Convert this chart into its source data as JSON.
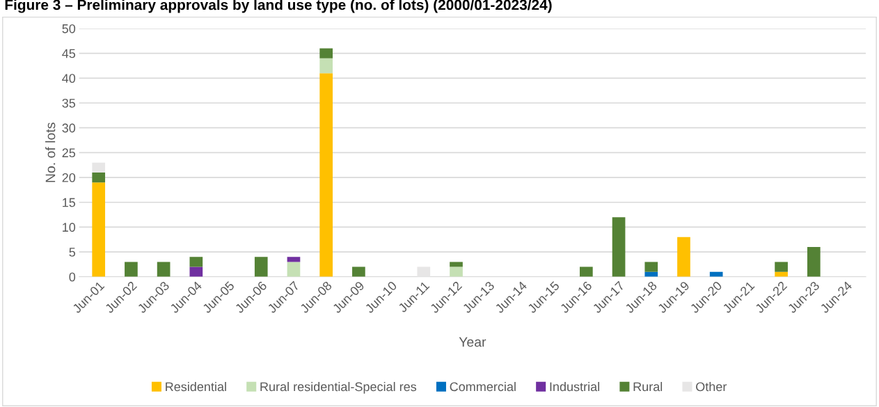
{
  "chart_data": {
    "type": "bar",
    "stacked": true,
    "title": "Figure 3 – Preliminary approvals by land use type (no. of lots) (2000/01-2023/24)",
    "xlabel": "Year",
    "ylabel": "No. of lots",
    "categories": [
      "Jun-01",
      "Jun-02",
      "Jun-03",
      "Jun-04",
      "Jun-05",
      "Jun-06",
      "Jun-07",
      "Jun-08",
      "Jun-09",
      "Jun-10",
      "Jun-11",
      "Jun-12",
      "Jun-13",
      "Jun-14",
      "Jun-15",
      "Jun-16",
      "Jun-17",
      "Jun-18",
      "Jun-19",
      "Jun-20",
      "Jun-21",
      "Jun-22",
      "Jun-23",
      "Jun-24"
    ],
    "series": [
      {
        "name": "Residential",
        "color": "#ffc000",
        "values": [
          19,
          null,
          null,
          null,
          null,
          null,
          null,
          41,
          null,
          null,
          null,
          null,
          null,
          null,
          null,
          null,
          null,
          null,
          8,
          null,
          null,
          1,
          null,
          null
        ]
      },
      {
        "name": "Rural residential-Special res",
        "color": "#c5e0b4",
        "values": [
          null,
          null,
          null,
          null,
          null,
          null,
          3,
          3,
          null,
          null,
          null,
          2,
          null,
          null,
          null,
          null,
          null,
          null,
          null,
          null,
          null,
          null,
          null,
          null
        ]
      },
      {
        "name": "Commercial",
        "color": "#0070c0",
        "values": [
          null,
          null,
          null,
          null,
          null,
          null,
          null,
          null,
          null,
          null,
          null,
          null,
          null,
          null,
          null,
          null,
          null,
          1,
          null,
          1,
          null,
          null,
          null,
          null
        ]
      },
      {
        "name": "Industrial",
        "color": "#7030a0",
        "values": [
          null,
          null,
          null,
          2,
          null,
          null,
          1,
          null,
          null,
          null,
          null,
          null,
          null,
          null,
          null,
          null,
          null,
          null,
          null,
          null,
          null,
          null,
          null,
          null
        ]
      },
      {
        "name": "Rural",
        "color": "#548235",
        "values": [
          2,
          3,
          3,
          2,
          null,
          4,
          null,
          2,
          2,
          null,
          null,
          1,
          null,
          null,
          null,
          2,
          12,
          2,
          null,
          null,
          null,
          2,
          6,
          null
        ]
      },
      {
        "name": "Other",
        "color": "#e7e6e6",
        "values": [
          2,
          null,
          null,
          null,
          null,
          null,
          null,
          null,
          null,
          null,
          2,
          null,
          null,
          null,
          null,
          null,
          null,
          null,
          null,
          null,
          null,
          null,
          null,
          null
        ]
      }
    ],
    "ylim": [
      0,
      50
    ],
    "yticks": [
      0,
      5,
      10,
      15,
      20,
      25,
      30,
      35,
      40,
      45,
      50
    ],
    "grid": "y",
    "legend": "bottom"
  }
}
